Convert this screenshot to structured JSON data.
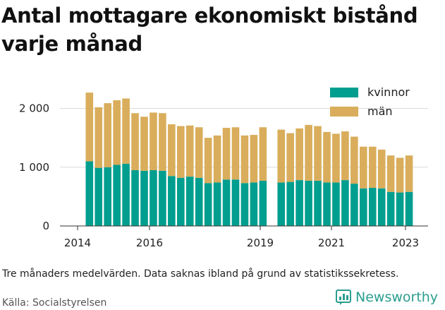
{
  "title": "Antal mottagare ekonomiskt bistånd varje månad",
  "note": "Tre månaders medelvärden. Data saknas ibland på grund av statistikssekretess.",
  "source": "Källa: Socialstyrelsen",
  "logo": {
    "text": "Newsworthy",
    "icon": "newsworthy-logo-icon"
  },
  "colors": {
    "kvinnor": "#009e8f",
    "man": "#d9ad5b",
    "grid": "#d9d9d9",
    "axis": "#333333"
  },
  "chart_data": {
    "type": "bar",
    "stacked": true,
    "x_tick_labels": [
      "2014",
      "2016",
      "2019",
      "2021",
      "2023"
    ],
    "y_tick_labels": [
      "0",
      "1 000",
      "2 000"
    ],
    "ylim": [
      0,
      2500
    ],
    "grid": true,
    "legend": "top-right",
    "series": [
      {
        "name": "kvinnor",
        "values": [
          1100,
          990,
          1000,
          1040,
          1060,
          950,
          940,
          950,
          940,
          850,
          820,
          840,
          820,
          730,
          740,
          790,
          790,
          730,
          740,
          770,
          null,
          740,
          750,
          780,
          770,
          770,
          740,
          740,
          780,
          720,
          640,
          650,
          640,
          580,
          570,
          580
        ]
      },
      {
        "name": "män",
        "values": [
          1170,
          1030,
          1090,
          1100,
          1110,
          970,
          920,
          980,
          980,
          880,
          880,
          870,
          860,
          770,
          800,
          880,
          890,
          810,
          810,
          910,
          null,
          900,
          830,
          880,
          950,
          930,
          860,
          830,
          830,
          800,
          710,
          700,
          660,
          620,
          590,
          620
        ]
      }
    ]
  }
}
